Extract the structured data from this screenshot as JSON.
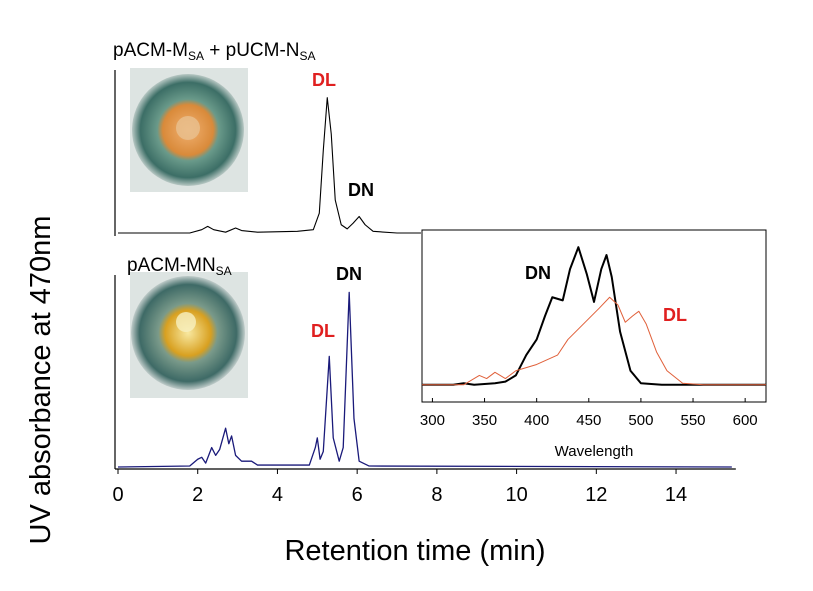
{
  "chart_data": [
    {
      "type": "line",
      "x_label": "Retention time (min)",
      "y_label": "UV absorbance at 470nm",
      "xlim": [
        0,
        15.5
      ],
      "xticks": [
        0,
        2,
        4,
        6,
        8,
        10,
        12,
        14
      ],
      "ylim": [
        0,
        100
      ],
      "series": [
        {
          "panel_label": [
            "pACM-M",
            "SA",
            " + pUCM-N",
            "SA"
          ],
          "color": "#000000",
          "x": [
            0,
            1.8,
            2.1,
            2.25,
            2.4,
            2.7,
            2.95,
            3.1,
            3.5,
            4.5,
            4.9,
            5.05,
            5.15,
            5.25,
            5.35,
            5.45,
            5.6,
            5.75,
            5.9,
            6.05,
            6.2,
            6.4,
            7,
            7.6
          ],
          "values": [
            0,
            0,
            2,
            4,
            2,
            0.5,
            3,
            1.5,
            0.5,
            1,
            2,
            12,
            50,
            82,
            60,
            20,
            5,
            2.5,
            6,
            10,
            5,
            1,
            0,
            0
          ]
        },
        {
          "panel_label": [
            "pACM-MN",
            "SA"
          ],
          "color": "#1a1a7a",
          "x": [
            0,
            1.8,
            2.0,
            2.1,
            2.2,
            2.35,
            2.45,
            2.55,
            2.7,
            2.78,
            2.85,
            2.95,
            3.1,
            3.35,
            3.5,
            4.8,
            4.95,
            5.0,
            5.07,
            5.15,
            5.3,
            5.4,
            5.55,
            5.65,
            5.8,
            5.92,
            6.05,
            6.3,
            15.4
          ],
          "values": [
            0,
            0.5,
            4,
            5,
            2,
            10,
            6,
            9,
            20,
            12,
            16,
            6,
            3,
            3,
            1,
            1,
            10,
            15,
            4,
            8,
            57,
            15,
            3,
            10,
            90,
            25,
            3,
            0.5,
            0
          ]
        }
      ],
      "annotations": [
        {
          "text": "DL",
          "color": "#e02020"
        },
        {
          "text": "DN",
          "color": "#000000"
        },
        {
          "text": "DN",
          "color": "#000000"
        },
        {
          "text": "DL",
          "color": "#e02020"
        }
      ]
    },
    {
      "type": "line",
      "x_label": "Wavelength",
      "xlim": [
        290,
        620
      ],
      "xticks": [
        300,
        350,
        400,
        450,
        500,
        550,
        600
      ],
      "ylim": [
        -10,
        100
      ],
      "series": [
        {
          "color": "#000000",
          "x": [
            290,
            320,
            330,
            340,
            360,
            370,
            380,
            390,
            400,
            408,
            415,
            425,
            432,
            440,
            448,
            455,
            462,
            467,
            472,
            480,
            490,
            500,
            520,
            620
          ],
          "values": [
            1,
            1,
            2,
            1,
            2,
            3,
            7,
            20,
            30,
            45,
            57,
            55,
            75,
            89,
            72,
            54,
            75,
            84,
            70,
            35,
            10,
            2,
            1,
            1
          ]
        },
        {
          "color": "#e0603a",
          "x": [
            290,
            330,
            345,
            352,
            360,
            370,
            380,
            400,
            420,
            430,
            445,
            460,
            470,
            478,
            485,
            492,
            498,
            505,
            515,
            525,
            540,
            560,
            620
          ],
          "values": [
            1,
            1,
            7,
            5,
            9,
            5,
            10,
            14,
            20,
            30,
            40,
            50,
            57,
            52,
            41,
            45,
            48,
            40,
            22,
            10,
            2,
            1,
            1
          ]
        }
      ],
      "annotations": [
        {
          "text": "DN",
          "color": "#000000"
        },
        {
          "text": "DL",
          "color": "#e02020"
        }
      ]
    }
  ]
}
